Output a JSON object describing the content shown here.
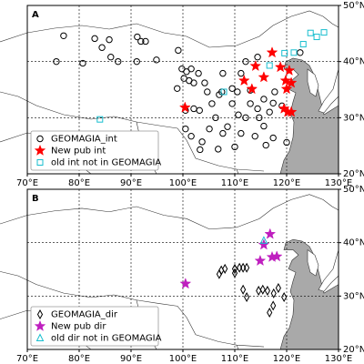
{
  "chart_data": [
    {
      "type": "scatter",
      "label": "A",
      "xlim": [
        70,
        130
      ],
      "ylim": [
        20,
        50
      ],
      "xticks": [
        {
          "value": 70,
          "label": "70°E"
        },
        {
          "value": 80,
          "label": "80°E"
        },
        {
          "value": 90,
          "label": "90°E"
        },
        {
          "value": 100,
          "label": "100°E"
        },
        {
          "value": 110,
          "label": "110°E"
        },
        {
          "value": 120,
          "label": "120°E"
        },
        {
          "value": 130,
          "label": "130°E"
        }
      ],
      "yticks": [
        {
          "value": 20,
          "label": "20°N"
        },
        {
          "value": 30,
          "label": "30°N"
        },
        {
          "value": 40,
          "label": "40°N"
        },
        {
          "value": 50,
          "label": "50°N"
        }
      ],
      "grid": true,
      "legend": "lower left",
      "series": [
        {
          "name": "GEOMAGIA_int",
          "color": "#000000",
          "marker": "circle",
          "x": [
            77.0,
            83.0,
            85.8,
            91.2,
            91.9,
            92.8,
            99.1,
            86.1,
            75.6,
            80.7,
            84.4,
            87.5,
            91.1,
            94.9,
            99.8,
            100.7,
            101.6,
            100.2,
            101.2,
            102.1,
            103.0,
            104.2,
            104.7,
            98.9,
            100.5,
            102.1,
            103.2,
            107.5,
            107.0,
            110.5,
            109.5,
            112.1,
            111.2,
            107.7,
            109.5,
            113.0,
            114.4,
            115.6,
            117.4,
            116.7,
            112.1,
            114.7,
            106.3,
            105.1,
            108.6,
            111.2,
            113.9,
            115.6,
            117.4,
            120.0,
            110.0,
            106.8,
            103.7,
            101.6,
            100.5,
            103.3,
            114.4,
            107.7,
            117.7,
            113.0,
            119.1,
            122.6,
            105.6,
            110.7,
            116.0
          ],
          "values": [
            44.6,
            44.1,
            43.9,
            44.4,
            43.6,
            43.6,
            42.0,
            40.8,
            40.0,
            39.7,
            42.5,
            40.0,
            40.0,
            40.3,
            38.7,
            38.2,
            38.7,
            37.0,
            36.6,
            36.2,
            37.9,
            36.2,
            34.6,
            35.2,
            31.3,
            31.6,
            31.3,
            34.6,
            34.1,
            34.6,
            35.2,
            40.0,
            37.9,
            37.9,
            32.5,
            32.5,
            31.6,
            33.3,
            32.6,
            31.0,
            30.0,
            30.0,
            30.0,
            28.0,
            28.4,
            27.2,
            26.7,
            28.5,
            26.4,
            25.6,
            24.8,
            24.4,
            25.7,
            26.7,
            28.0,
            24.3,
            40.8,
            27.2,
            34.6,
            34.9,
            32.1,
            41.6,
            32.5,
            30.5,
            25.1
          ]
        },
        {
          "name": "New pub int",
          "color": "#ff0000",
          "marker": "star",
          "x": [
            117.2,
            114.0,
            118.8,
            115.6,
            119.8,
            120.0,
            120.9,
            120.5,
            111.8,
            113.3,
            119.5,
            120.2,
            120.9,
            100.4
          ],
          "values": [
            41.6,
            39.2,
            39.0,
            37.2,
            36.6,
            35.1,
            36.2,
            38.4,
            36.6,
            35.1,
            31.6,
            31.0,
            31.0,
            31.8
          ]
        },
        {
          "name": "old int not in GEOMAGIA",
          "color": "#17becf",
          "marker": "square",
          "x": [
            125.8,
            127.2,
            124.6,
            123.2,
            121.4,
            119.6,
            116.7,
            107.9,
            84.0
          ],
          "values": [
            44.4,
            45.2,
            45.1,
            43.1,
            41.6,
            41.5,
            39.3,
            34.6,
            29.7
          ]
        }
      ]
    },
    {
      "type": "scatter",
      "label": "B",
      "xlim": [
        70,
        130
      ],
      "ylim": [
        20,
        50
      ],
      "xticks": [
        {
          "value": 70,
          "label": "70°E"
        },
        {
          "value": 80,
          "label": "80°E"
        },
        {
          "value": 90,
          "label": "90°E"
        },
        {
          "value": 100,
          "label": "100°E"
        },
        {
          "value": 110,
          "label": "110°E"
        },
        {
          "value": 120,
          "label": "120°E"
        },
        {
          "value": 130,
          "label": "130°E"
        }
      ],
      "yticks": [
        {
          "value": 20,
          "label": "20°N"
        },
        {
          "value": 30,
          "label": "30°N"
        },
        {
          "value": 40,
          "label": "40°N"
        },
        {
          "value": 50,
          "label": "50°N"
        }
      ],
      "grid": true,
      "legend": "lower left",
      "series": [
        {
          "name": "GEOMAGIA_dir",
          "color": "#000000",
          "marker": "diamond",
          "x": [
            107.4,
            108.1,
            110.0,
            110.9,
            111.6,
            112.3,
            107.0,
            110.0,
            111.6,
            114.6,
            115.4,
            116.3,
            117.5,
            118.4,
            119.5,
            116.7,
            117.4,
            112.3
          ],
          "values": [
            34.8,
            35.1,
            35.1,
            35.3,
            35.3,
            35.3,
            34.1,
            34.3,
            31.2,
            31.0,
            31.2,
            31.0,
            30.5,
            31.5,
            29.8,
            26.9,
            28.2,
            29.8
          ]
        },
        {
          "name": "New pub dir",
          "color": "#bf1fbf",
          "marker": "star",
          "x": [
            100.5,
            116.8,
            117.2,
            118.1,
            114.9,
            115.6
          ],
          "values": [
            32.3,
            41.6,
            37.3,
            37.4,
            36.6,
            39.6
          ]
        },
        {
          "name": "old dir not in GEOMAGIA",
          "color": "#17becf",
          "marker": "triangle",
          "x": [
            115.6
          ],
          "values": [
            40.4
          ]
        }
      ]
    }
  ]
}
